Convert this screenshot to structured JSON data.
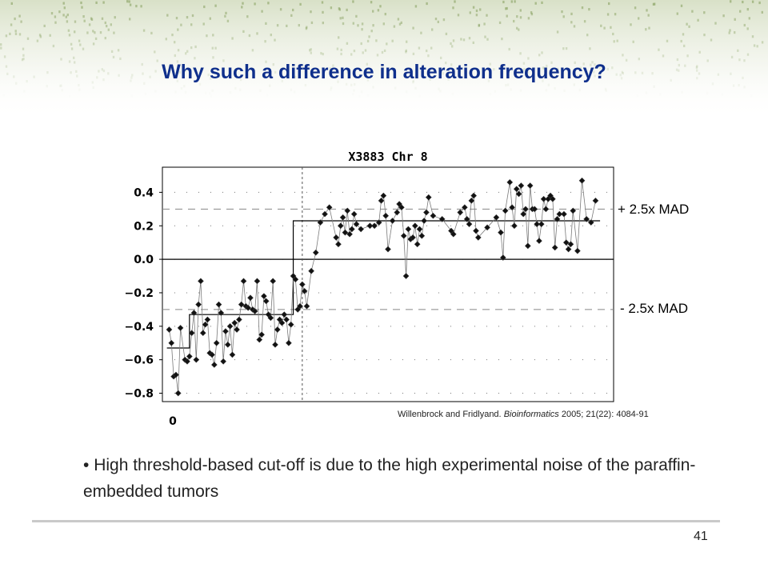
{
  "slide": {
    "title": "Why such a difference in alteration frequency?",
    "mad_plus_label": "+ 2.5x MAD",
    "mad_minus_label": "- 2.5x MAD",
    "citation_prefix": "Willenbrock and Fridlyand.",
    "citation_journal": "Bioinformatics",
    "citation_suffix": "2005; 21(22): 4084-91",
    "bullet_mark": "•",
    "bullet_text": "High threshold-based cut-off is due to the high experimental noise of the paraffin-embedded tumors",
    "slide_number": "41"
  },
  "colors": {
    "title": "#0f2f8c",
    "band": "#b9c89a"
  },
  "chart_data": {
    "type": "scatter",
    "title": "X3883 Chr 8",
    "xlabel": "",
    "ylabel": "",
    "x_tick_labels": [
      "0"
    ],
    "y_ticks": [
      0.4,
      0.2,
      0.0,
      -0.2,
      -0.4,
      -0.6,
      -0.8
    ],
    "y_tick_labels": [
      "0.4",
      "0.2",
      "0.0",
      "−0.2",
      "−0.4",
      "−0.6",
      "−0.8"
    ],
    "ylim": [
      -0.85,
      0.55
    ],
    "xlim": [
      0,
      100
    ],
    "grid": "dotted",
    "threshold_lines": [
      0.3,
      -0.3
    ],
    "segments": [
      {
        "x_start": 1,
        "x_end": 6,
        "y": -0.53
      },
      {
        "x_start": 6,
        "x_end": 29,
        "y": -0.33
      },
      {
        "x_start": 29,
        "x_end": 97,
        "y": 0.23
      }
    ],
    "breakpoint_x": 31,
    "points": [
      [
        1.5,
        -0.42
      ],
      [
        2,
        -0.5
      ],
      [
        2.5,
        -0.7
      ],
      [
        3,
        -0.69
      ],
      [
        3.5,
        -0.8
      ],
      [
        4,
        -0.41
      ],
      [
        5,
        -0.6
      ],
      [
        5.5,
        -0.61
      ],
      [
        6,
        -0.58
      ],
      [
        6.5,
        -0.44
      ],
      [
        7,
        -0.32
      ],
      [
        7.5,
        -0.6
      ],
      [
        8,
        -0.27
      ],
      [
        8.5,
        -0.13
      ],
      [
        9,
        -0.44
      ],
      [
        9.5,
        -0.39
      ],
      [
        10,
        -0.36
      ],
      [
        10.5,
        -0.56
      ],
      [
        11,
        -0.57
      ],
      [
        11.5,
        -0.63
      ],
      [
        12,
        -0.5
      ],
      [
        12.5,
        -0.27
      ],
      [
        13,
        -0.32
      ],
      [
        13.5,
        -0.61
      ],
      [
        14,
        -0.43
      ],
      [
        14.5,
        -0.51
      ],
      [
        15,
        -0.4
      ],
      [
        15.5,
        -0.57
      ],
      [
        16,
        -0.38
      ],
      [
        16.5,
        -0.42
      ],
      [
        17,
        -0.36
      ],
      [
        17.5,
        -0.27
      ],
      [
        18,
        -0.13
      ],
      [
        18.5,
        -0.28
      ],
      [
        19,
        -0.29
      ],
      [
        19.5,
        -0.23
      ],
      [
        20,
        -0.3
      ],
      [
        20.5,
        -0.31
      ],
      [
        21,
        -0.13
      ],
      [
        21.5,
        -0.48
      ],
      [
        22,
        -0.45
      ],
      [
        22.5,
        -0.22
      ],
      [
        23,
        -0.25
      ],
      [
        23.5,
        -0.33
      ],
      [
        24,
        -0.35
      ],
      [
        24.5,
        -0.13
      ],
      [
        25,
        -0.51
      ],
      [
        25.5,
        -0.42
      ],
      [
        26,
        -0.36
      ],
      [
        26.5,
        -0.38
      ],
      [
        27,
        -0.33
      ],
      [
        27.5,
        -0.36
      ],
      [
        28,
        -0.5
      ],
      [
        28.5,
        -0.39
      ],
      [
        29,
        -0.1
      ],
      [
        29.5,
        -0.12
      ],
      [
        30,
        -0.3
      ],
      [
        30.5,
        -0.28
      ],
      [
        31,
        -0.15
      ],
      [
        31.5,
        -0.19
      ],
      [
        32,
        -0.28
      ],
      [
        33,
        -0.07
      ],
      [
        34,
        0.04
      ],
      [
        35,
        0.22
      ],
      [
        36,
        0.27
      ],
      [
        37,
        0.31
      ],
      [
        38.5,
        0.13
      ],
      [
        39,
        0.09
      ],
      [
        39.5,
        0.2
      ],
      [
        40,
        0.25
      ],
      [
        40.5,
        0.16
      ],
      [
        41,
        0.29
      ],
      [
        41.5,
        0.15
      ],
      [
        42,
        0.18
      ],
      [
        42.5,
        0.27
      ],
      [
        43,
        0.21
      ],
      [
        44,
        0.18
      ],
      [
        46,
        0.2
      ],
      [
        47,
        0.2
      ],
      [
        48,
        0.22
      ],
      [
        48.5,
        0.35
      ],
      [
        49,
        0.38
      ],
      [
        49.5,
        0.26
      ],
      [
        50,
        0.06
      ],
      [
        51,
        0.23
      ],
      [
        52,
        0.28
      ],
      [
        52.5,
        0.33
      ],
      [
        53,
        0.31
      ],
      [
        53.5,
        0.14
      ],
      [
        54,
        -0.1
      ],
      [
        54.5,
        0.18
      ],
      [
        55,
        0.12
      ],
      [
        55.5,
        0.13
      ],
      [
        56,
        0.2
      ],
      [
        56.5,
        0.09
      ],
      [
        57,
        0.18
      ],
      [
        57.5,
        0.14
      ],
      [
        58,
        0.23
      ],
      [
        58.5,
        0.28
      ],
      [
        59,
        0.37
      ],
      [
        60,
        0.26
      ],
      [
        62,
        0.24
      ],
      [
        64,
        0.17
      ],
      [
        64.5,
        0.15
      ],
      [
        66,
        0.28
      ],
      [
        67,
        0.31
      ],
      [
        67.5,
        0.24
      ],
      [
        68,
        0.21
      ],
      [
        68.5,
        0.35
      ],
      [
        69,
        0.38
      ],
      [
        69.5,
        0.17
      ],
      [
        70,
        0.13
      ],
      [
        72,
        0.19
      ],
      [
        74,
        0.25
      ],
      [
        75,
        0.16
      ],
      [
        75.5,
        0.01
      ],
      [
        76,
        0.29
      ],
      [
        77,
        0.46
      ],
      [
        77.5,
        0.31
      ],
      [
        78,
        0.2
      ],
      [
        78.5,
        0.42
      ],
      [
        79,
        0.39
      ],
      [
        79.5,
        0.44
      ],
      [
        80,
        0.27
      ],
      [
        80.5,
        0.3
      ],
      [
        81,
        0.08
      ],
      [
        81.5,
        0.44
      ],
      [
        82,
        0.3
      ],
      [
        82.5,
        0.3
      ],
      [
        83,
        0.21
      ],
      [
        83.5,
        0.11
      ],
      [
        84,
        0.21
      ],
      [
        84.5,
        0.36
      ],
      [
        85,
        0.3
      ],
      [
        85.5,
        0.36
      ],
      [
        86,
        0.38
      ],
      [
        86.5,
        0.36
      ],
      [
        87,
        0.07
      ],
      [
        87.5,
        0.24
      ],
      [
        88,
        0.27
      ],
      [
        89,
        0.27
      ],
      [
        89.5,
        0.1
      ],
      [
        90,
        0.06
      ],
      [
        90.5,
        0.09
      ],
      [
        91,
        0.29
      ],
      [
        92,
        0.05
      ],
      [
        93,
        0.47
      ],
      [
        94,
        0.24
      ],
      [
        95,
        0.22
      ],
      [
        96,
        0.35
      ]
    ]
  }
}
